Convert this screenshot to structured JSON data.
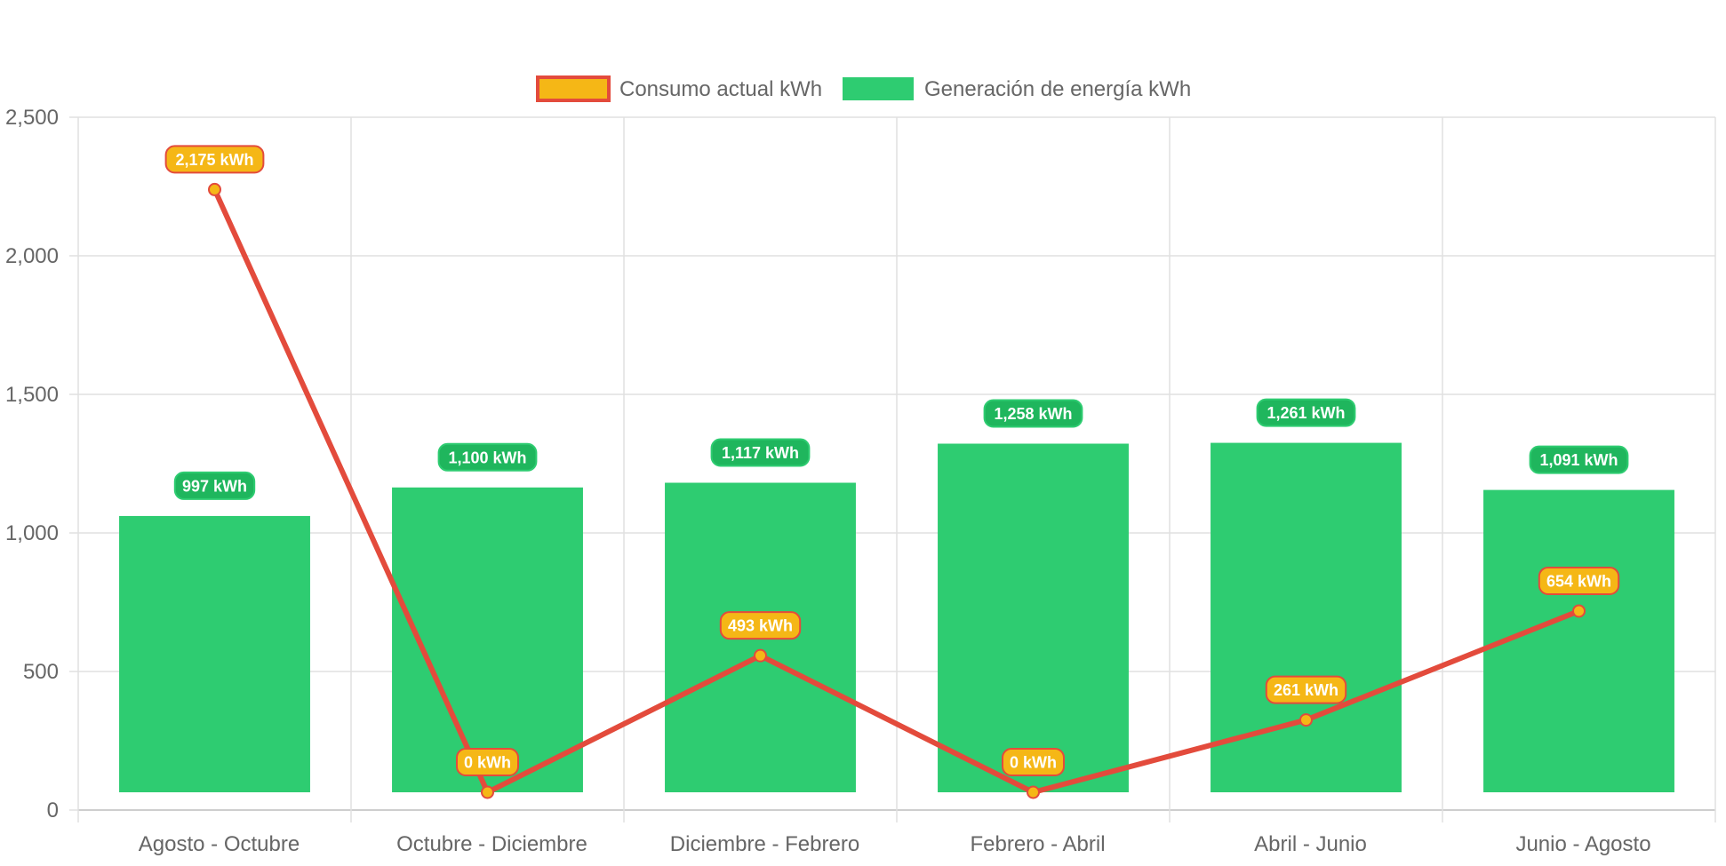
{
  "chart_data": {
    "type": "bar",
    "title": "",
    "xlabel": "",
    "ylabel": "",
    "categories": [
      "Agosto - Octubre",
      "Octubre - Diciembre",
      "Diciembre - Febrero",
      "Febrero - Abril",
      "Abril - Junio",
      "Junio - Agosto"
    ],
    "ylim": [
      0,
      2500
    ],
    "yticks": [
      0,
      500,
      1000,
      1500,
      2000,
      2500
    ],
    "ytick_labels": [
      "0",
      "500",
      "1,000",
      "1,500",
      "2,000",
      "2,500"
    ],
    "grid": true,
    "legend_position": "top-center",
    "series": [
      {
        "name": "Consumo actual kWh",
        "type": "line",
        "color": "#e34b3c",
        "point_color": "#f5b716",
        "values": [
          2175,
          0,
          493,
          0,
          261,
          654
        ],
        "labels": [
          "2,175 kWh",
          "0 kWh",
          "493 kWh",
          "0 kWh",
          "261 kWh",
          "654 kWh"
        ]
      },
      {
        "name": "Generación de energía kWh",
        "type": "bar",
        "color": "#2ecc71",
        "label_color": "#1fb65d",
        "values": [
          997,
          1100,
          1117,
          1258,
          1261,
          1091
        ],
        "labels": [
          "997 kWh",
          "1,100 kWh",
          "1,117 kWh",
          "1,258 kWh",
          "1,261 kWh",
          "1,091 kWh"
        ]
      }
    ]
  }
}
